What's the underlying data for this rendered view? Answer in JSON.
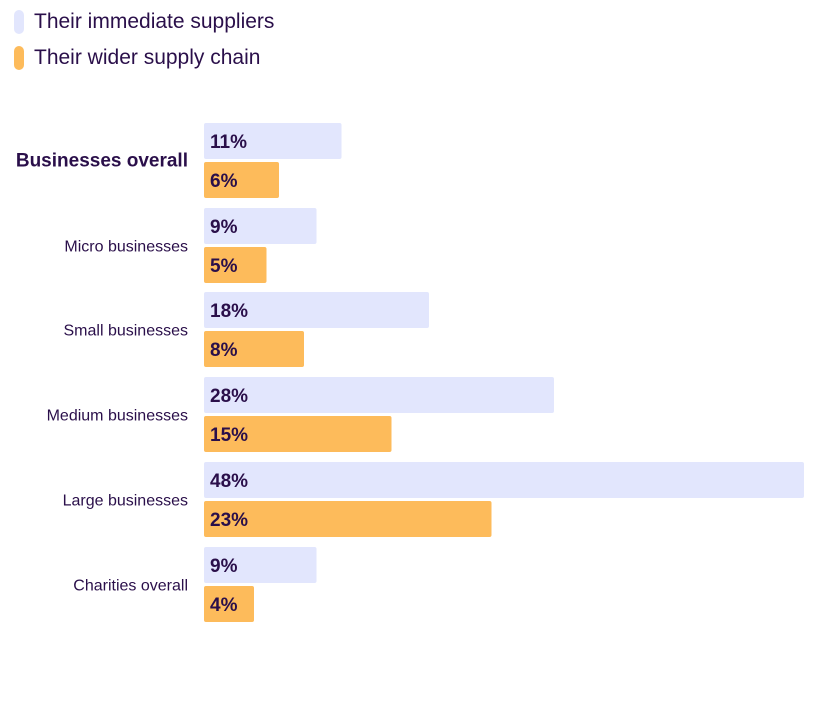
{
  "chart_data": {
    "type": "bar",
    "orientation": "horizontal",
    "title": "",
    "xlabel": "",
    "ylabel": "",
    "xlim": [
      0,
      48
    ],
    "grid": false,
    "legend_position": "top-left",
    "categories": [
      "Businesses overall",
      "Micro businesses",
      "Small businesses",
      "Medium businesses",
      "Large businesses",
      "Charities overall"
    ],
    "highlight_category": "Businesses overall",
    "series": [
      {
        "name": "Their immediate suppliers",
        "color": "#e2e6fd",
        "values": [
          11,
          9,
          18,
          28,
          48,
          9
        ],
        "labels": [
          "11%",
          "9%",
          "18%",
          "28%",
          "48%",
          "9%"
        ]
      },
      {
        "name": "Their wider supply chain",
        "color": "#fdbb5b",
        "values": [
          6,
          5,
          8,
          15,
          23,
          4
        ],
        "labels": [
          "6%",
          "5%",
          "8%",
          "15%",
          "23%",
          "4%"
        ]
      }
    ]
  }
}
